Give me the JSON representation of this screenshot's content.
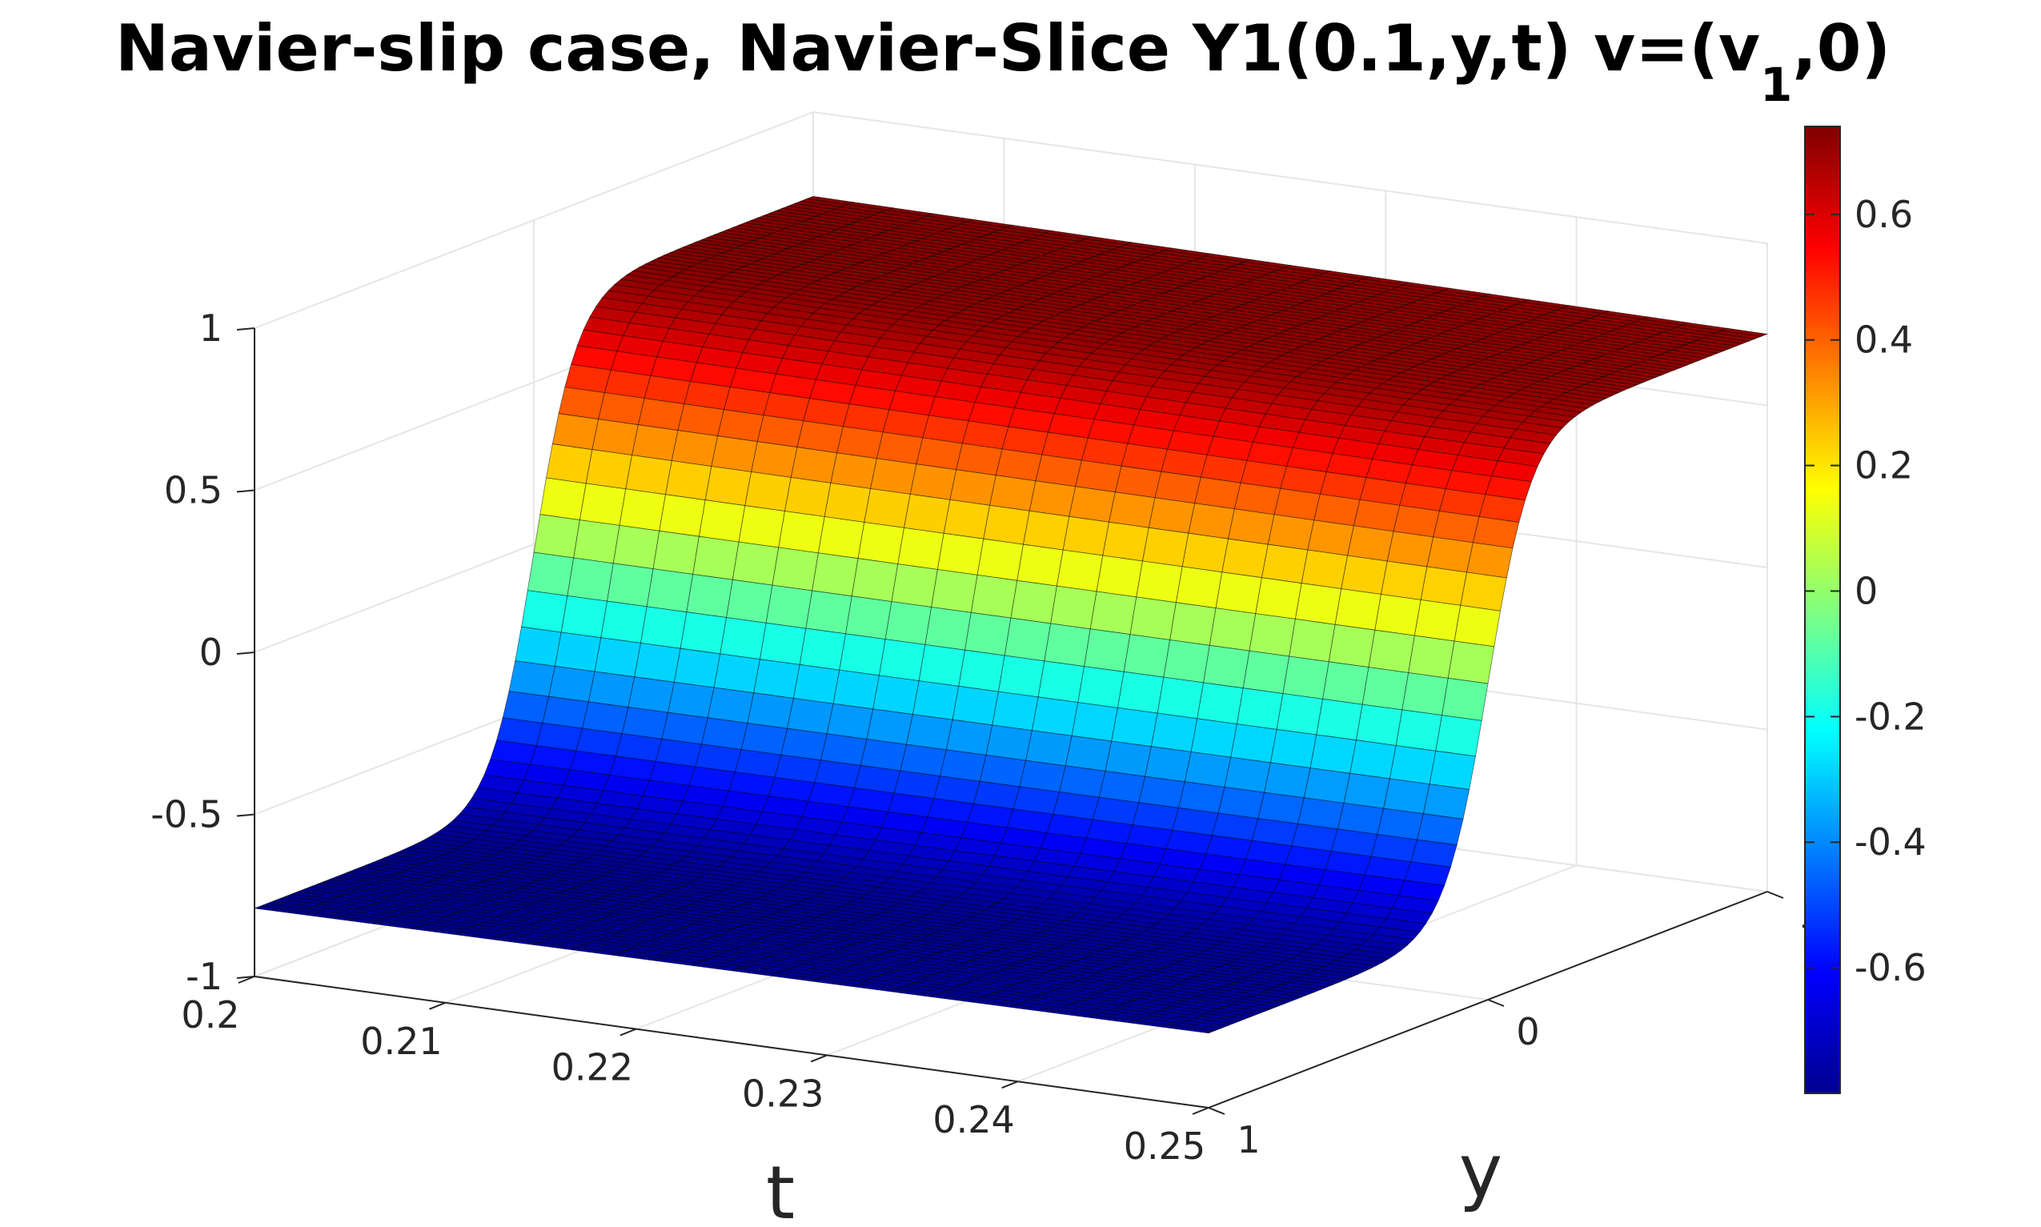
{
  "chart_data": {
    "type": "surface",
    "title": {
      "main": "Navier-slip case, Navier-Slice Y1(0.1,y,t) v=(v",
      "subscript": "1",
      "end": ",0)"
    },
    "xlabel": "t",
    "ylabel": "y",
    "zlabel": "",
    "xlim": [
      0.2,
      0.25
    ],
    "ylim": [
      -1,
      1
    ],
    "zlim": [
      -1,
      1
    ],
    "x_ticks": [
      "0.2",
      "0.21",
      "0.22",
      "0.23",
      "0.24",
      "0.25"
    ],
    "x_tick_values": [
      0.2,
      0.21,
      0.22,
      0.23,
      0.24,
      0.25
    ],
    "y_ticks": [
      "1",
      "0",
      "-"
    ],
    "y_tick_values": [
      1,
      0,
      -1
    ],
    "z_ticks": [
      "1",
      "0.5",
      "0",
      "-0.5",
      "-1"
    ],
    "z_tick_values": [
      1,
      0.5,
      0,
      -0.5,
      -1
    ],
    "grid": true,
    "colormap": "jet",
    "colorbar": {
      "range": [
        -0.8,
        0.74
      ],
      "ticks": [
        "0.6",
        "0.4",
        "0.2",
        "0",
        "-0.2",
        "-0.4",
        "-0.6"
      ],
      "tick_values": [
        0.6,
        0.4,
        0.2,
        0,
        -0.2,
        -0.4,
        -0.6
      ]
    },
    "surface": {
      "description_of_shape": "v1 rises from about -0.79 at y=1 to about 0.74 at y=-1 through a smooth tanh-like transition near y=0; slight decrease in amplitude with increasing t",
      "t_samples": [
        0.2,
        0.21,
        0.22,
        0.23,
        0.24,
        0.25
      ],
      "y_samples": [
        1,
        0.6,
        0.3,
        0,
        -0.3,
        -0.6,
        -1
      ],
      "z_at_t_start": [
        -0.79,
        -0.78,
        -0.62,
        0.0,
        0.6,
        0.72,
        0.74
      ],
      "z_at_t_end": [
        -0.77,
        -0.76,
        -0.6,
        0.0,
        0.58,
        0.7,
        0.72
      ]
    },
    "grid_lines_color": "#e6e6e6",
    "edge_color": "#000000"
  }
}
